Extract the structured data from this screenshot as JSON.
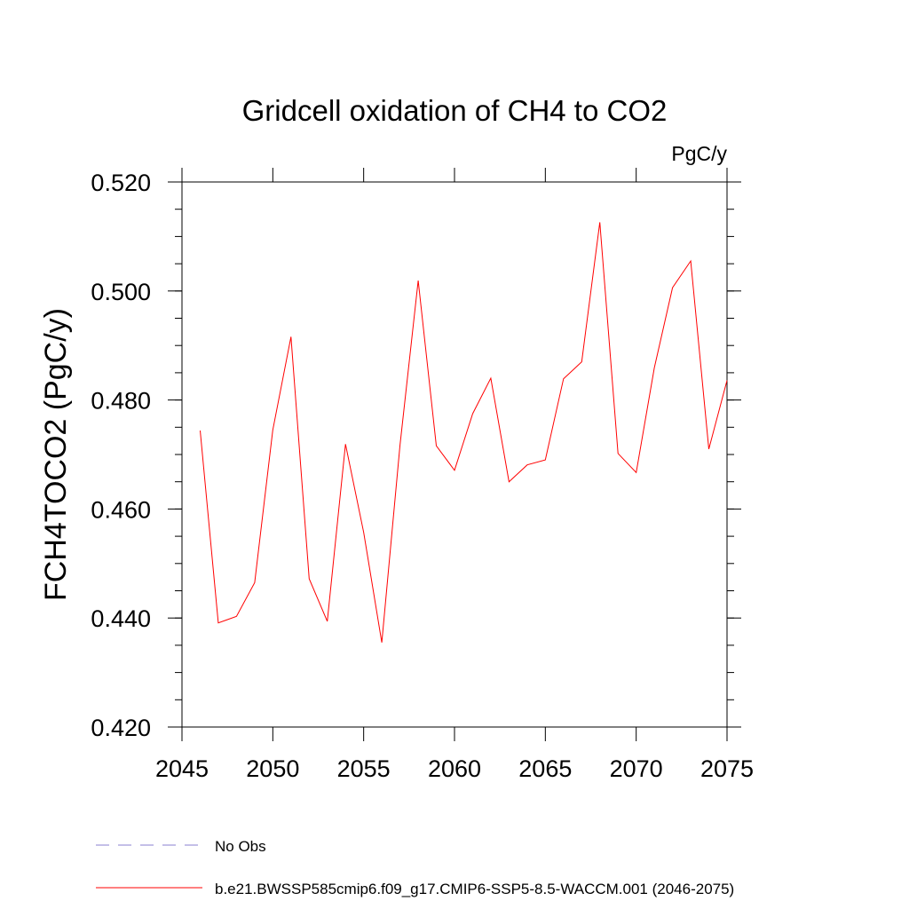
{
  "chart_data": {
    "type": "line",
    "title": "Gridcell oxidation of CH4 to CO2",
    "units_label": "PgC/y",
    "xlabel": "",
    "ylabel": "FCH4TOCO2  (PgC/y)",
    "xlim": [
      2045,
      2075
    ],
    "ylim": [
      0.42,
      0.52
    ],
    "x_ticks": [
      2045,
      2050,
      2055,
      2060,
      2065,
      2070,
      2075
    ],
    "y_ticks": [
      0.42,
      0.44,
      0.46,
      0.48,
      0.5,
      0.52
    ],
    "y_tick_labels": [
      "0.420",
      "0.440",
      "0.460",
      "0.480",
      "0.500",
      "0.520"
    ],
    "grid": false,
    "legend_position": "bottom",
    "legend": [
      {
        "label": "No Obs",
        "color": "#8a7fd0",
        "style": "dashed"
      },
      {
        "label": "b.e21.BWSSP585cmip6.f09_g17.CMIP6-SSP5-8.5-WACCM.001 (2046-2075)",
        "color": "#ff0000",
        "style": "solid"
      }
    ],
    "series": [
      {
        "color": "#ff0000",
        "x": [
          2046,
          2047,
          2048,
          2049,
          2050,
          2051,
          2052,
          2053,
          2054,
          2055,
          2056,
          2057,
          2058,
          2059,
          2060,
          2061,
          2062,
          2063,
          2064,
          2065,
          2066,
          2067,
          2068,
          2069,
          2070,
          2071,
          2072,
          2073,
          2074,
          2075
        ],
        "y": [
          0.4744,
          0.4391,
          0.4403,
          0.4465,
          0.4745,
          0.4916,
          0.4472,
          0.4394,
          0.4719,
          0.4557,
          0.4355,
          0.4717,
          0.5019,
          0.4716,
          0.4671,
          0.4775,
          0.484,
          0.465,
          0.4681,
          0.469,
          0.4839,
          0.487,
          0.5126,
          0.4702,
          0.4667,
          0.4859,
          0.5006,
          0.5055,
          0.471,
          0.4836
        ]
      }
    ]
  }
}
